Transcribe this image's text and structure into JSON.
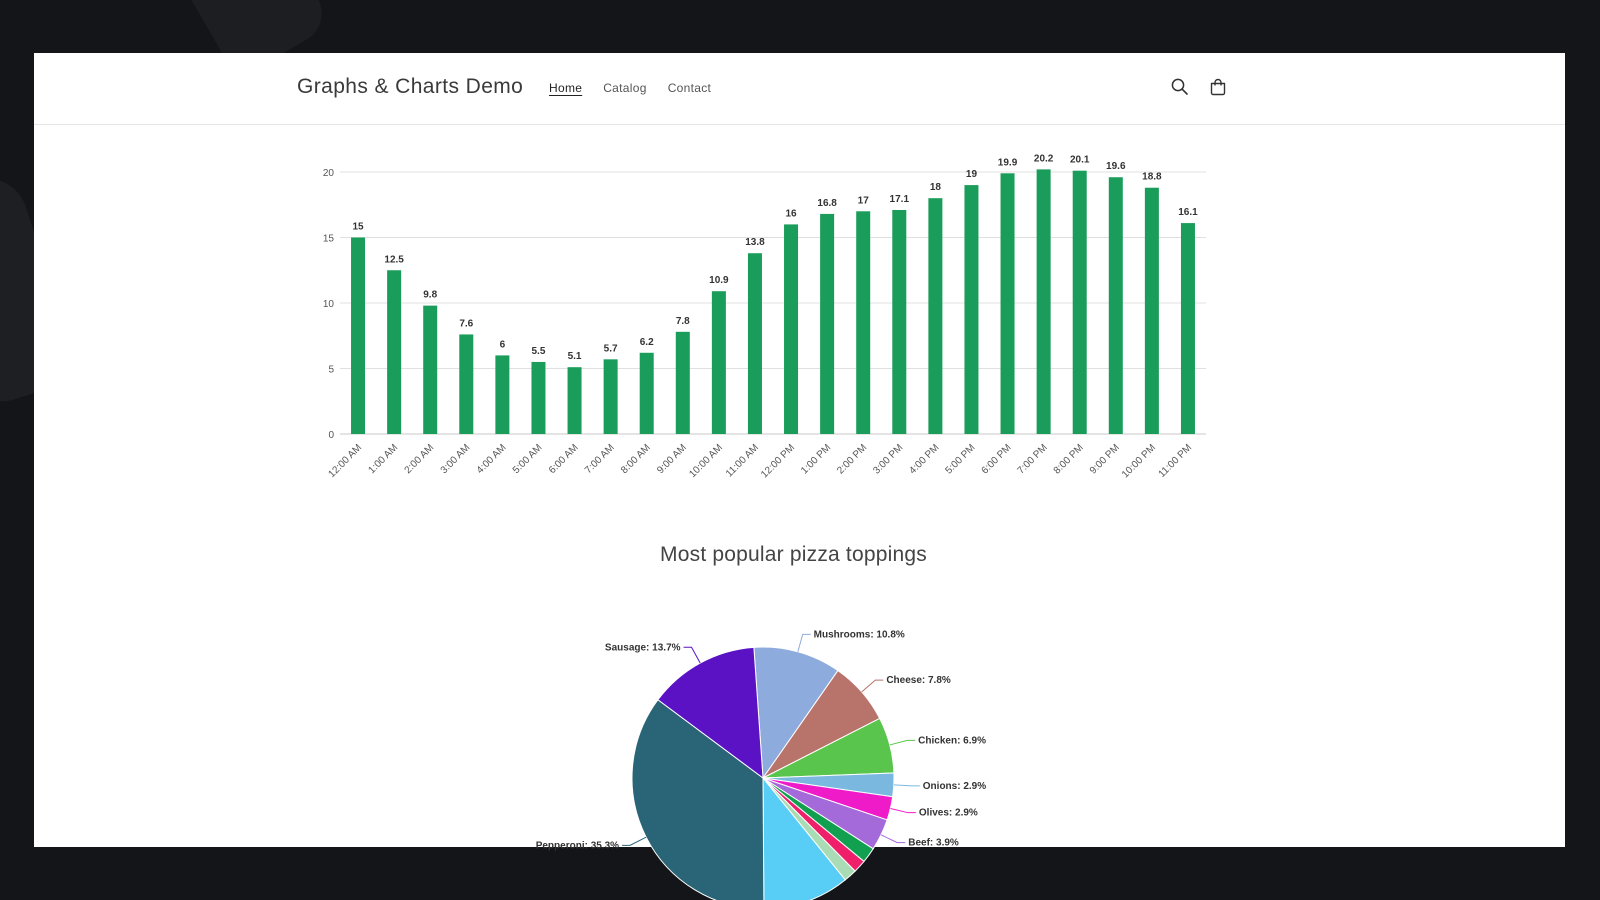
{
  "header": {
    "site_title": "Graphs & Charts Demo",
    "nav": [
      {
        "label": "Home",
        "active": true
      },
      {
        "label": "Catalog",
        "active": false
      },
      {
        "label": "Contact",
        "active": false
      }
    ],
    "icons": [
      "search-icon",
      "cart-icon"
    ]
  },
  "colors": {
    "bar": "#1a9c5a",
    "grid": "#e0e0e0",
    "page": "#ffffff",
    "frame": "#141518"
  },
  "chart_data": [
    {
      "type": "bar",
      "title": "",
      "xlabel": "",
      "ylabel": "",
      "ylim": [
        0,
        20
      ],
      "yticks": [
        0,
        5,
        10,
        15,
        20
      ],
      "grid": true,
      "data_labels": true,
      "categories": [
        "12:00 AM",
        "1:00 AM",
        "2:00 AM",
        "3:00 AM",
        "4:00 AM",
        "5:00 AM",
        "6:00 AM",
        "7:00 AM",
        "8:00 AM",
        "9:00 AM",
        "10:00 AM",
        "11:00 AM",
        "12:00 PM",
        "1:00 PM",
        "2:00 PM",
        "3:00 PM",
        "4:00 PM",
        "5:00 PM",
        "6:00 PM",
        "7:00 PM",
        "8:00 PM",
        "9:00 PM",
        "10:00 PM",
        "11:00 PM"
      ],
      "values": [
        15,
        12.5,
        9.8,
        7.6,
        6,
        5.5,
        5.1,
        5.7,
        6.2,
        7.8,
        10.9,
        13.8,
        16,
        16.8,
        17,
        17.1,
        18,
        19,
        19.9,
        20.2,
        20.1,
        19.6,
        18.8,
        16.1
      ]
    },
    {
      "type": "pie",
      "title": "Most popular pizza toppings",
      "slices": [
        {
          "label": "Pepperoni",
          "value": 35.3,
          "display": "Pepperoni: 35.3%",
          "color": "#2a6577"
        },
        {
          "label": "Sausage",
          "value": 13.7,
          "display": "Sausage: 13.7%",
          "color": "#5a12c4"
        },
        {
          "label": "Mushrooms",
          "value": 10.8,
          "display": "Mushrooms: 10.8%",
          "color": "#8eabdd"
        },
        {
          "label": "Cheese",
          "value": 7.8,
          "display": "Cheese: 7.8%",
          "color": "#b8736a"
        },
        {
          "label": "Chicken",
          "value": 6.9,
          "display": "Chicken: 6.9%",
          "color": "#5ac54c"
        },
        {
          "label": "Onions",
          "value": 2.9,
          "display": "Onions: 2.9%",
          "color": "#7ab8e0"
        },
        {
          "label": "Olives",
          "value": 2.9,
          "display": "Olives: 2.9%",
          "color": "#f01bc8"
        },
        {
          "label": "Beef",
          "value": 3.9,
          "display": "Beef: 3.9%",
          "color": "#a56ad9"
        },
        {
          "label": "",
          "value": 1.9,
          "display": "",
          "color": "#11a04f"
        },
        {
          "label": "",
          "value": 1.6,
          "display": "",
          "color": "#ef1f6a"
        },
        {
          "label": "",
          "value": 1.6,
          "display": "",
          "color": "#a9dcb4"
        },
        {
          "label": "",
          "value": 10.7,
          "display": "",
          "color": "#58cdf5"
        }
      ]
    }
  ]
}
